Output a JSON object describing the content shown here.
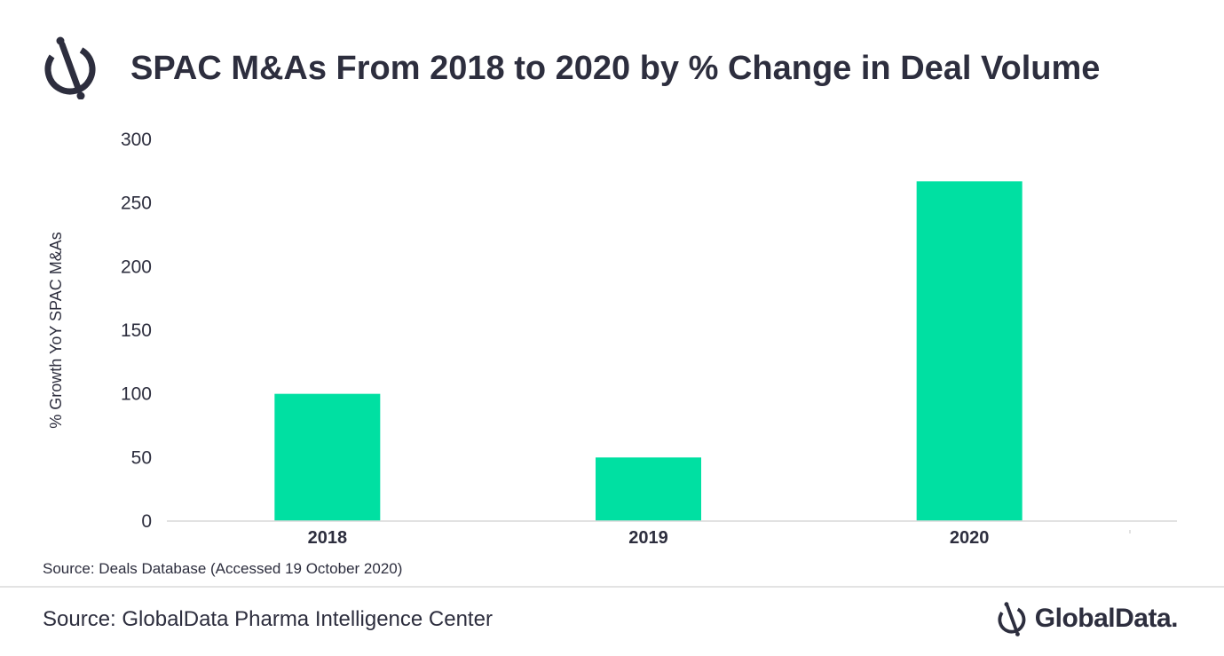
{
  "header": {
    "title": "SPAC M&As From 2018 to 2020 by % Change in Deal Volume"
  },
  "chart_data": {
    "type": "bar",
    "title": "SPAC M&As From 2018 to 2020 by % Change in Deal Volume",
    "categories": [
      "2018",
      "2019",
      "2020"
    ],
    "values": [
      100,
      50,
      267
    ],
    "ylabel": "% Growth YoY SPAC M&As",
    "xlabel": "",
    "ylim": [
      0,
      300
    ],
    "yticks": [
      0,
      50,
      100,
      150,
      200,
      250,
      300
    ],
    "grid": false,
    "legend": "none",
    "bar_color": "#00e0a2"
  },
  "chart_source": "Source: Deals Database (Accessed 19 October 2020)",
  "footer": {
    "source": "Source: GlobalData Pharma Intelligence Center",
    "brand": "GlobalData."
  },
  "colors": {
    "text": "#2d2e3e",
    "bar": "#00e0a2",
    "axis": "#d9d9d9"
  },
  "icons": {
    "header_logo": "globaldata-logo-icon",
    "footer_logo": "globaldata-logo-icon"
  }
}
